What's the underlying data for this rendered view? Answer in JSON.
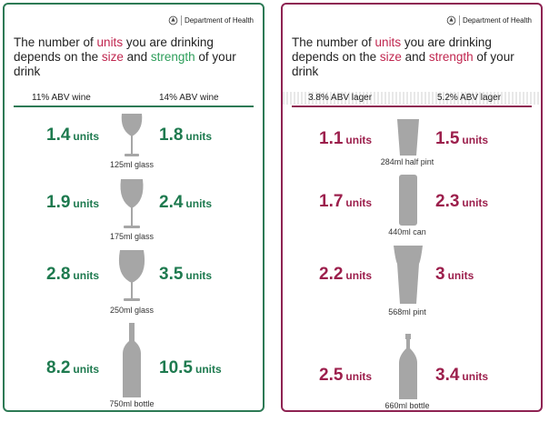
{
  "department": "Department of Health",
  "headline": {
    "part1": "The number of ",
    "units": "units",
    "part2": " you are drinking depends on the ",
    "size": "size",
    "part3": " and ",
    "strength": "strength",
    "part4": " of your drink"
  },
  "wine": {
    "col_left": "11% ABV wine",
    "col_right": "14% ABV wine",
    "rows": [
      {
        "left": "1.4",
        "right": "1.8",
        "caption": "125ml glass"
      },
      {
        "left": "1.9",
        "right": "2.4",
        "caption": "175ml glass"
      },
      {
        "left": "2.8",
        "right": "3.5",
        "caption": "250ml glass"
      },
      {
        "left": "8.2",
        "right": "10.5",
        "caption": "750ml bottle"
      }
    ]
  },
  "beer": {
    "col_left": "3.8% ABV lager",
    "col_right": "5.2% ABV lager",
    "rows": [
      {
        "left": "1.1",
        "right": "1.5",
        "caption": "284ml half pint"
      },
      {
        "left": "1.7",
        "right": "2.3",
        "caption": "440ml can"
      },
      {
        "left": "2.2",
        "right": "3",
        "caption": "568ml pint"
      },
      {
        "left": "2.5",
        "right": "3.4",
        "caption": "660ml bottle"
      }
    ]
  },
  "units_label": "units",
  "colors": {
    "wine": "#2d7a55",
    "beer": "#8e2352",
    "accent": "#c0264f",
    "icon": "#a6a6a6"
  }
}
